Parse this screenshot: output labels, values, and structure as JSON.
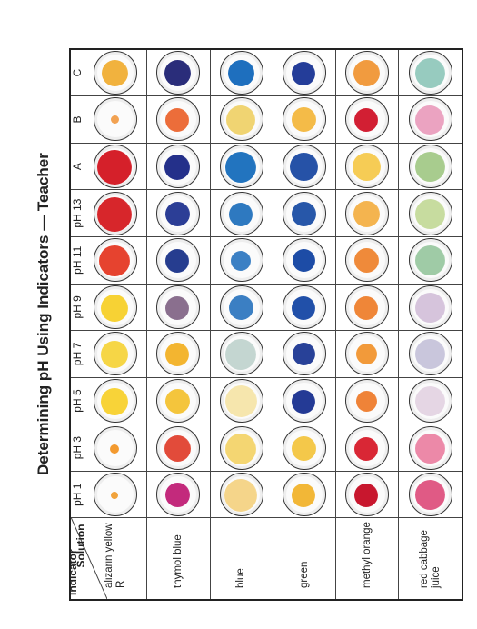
{
  "title": "Determining pH Using Indicators — Teacher",
  "header": {
    "solution_label": "Solution",
    "indicator_label": "Indicator",
    "columns": [
      "pH 1",
      "pH 3",
      "pH 5",
      "pH 7",
      "pH 9",
      "pH 11",
      "pH 13",
      "A",
      "B",
      "C"
    ]
  },
  "rows": [
    {
      "indicator": "alizarin yellow R",
      "colors": [
        "#f1a33c",
        "#f39a2f",
        "#f8d338",
        "#f6d646",
        "#f7d234",
        "#e6432f",
        "#d7262b",
        "#d5202a",
        "#f2a252",
        "#f1b23e"
      ]
    },
    {
      "indicator": "thymol blue",
      "colors": [
        "#c32a7c",
        "#e24b3a",
        "#f4c53c",
        "#f3b530",
        "#8a6f8e",
        "#263d8f",
        "#2c3e96",
        "#24308a",
        "#ec6d3a",
        "#2a2d7a"
      ]
    },
    {
      "indicator": "blue",
      "colors": [
        "#f5d58a",
        "#f4d672",
        "#f6e6ad",
        "#c4d6d1",
        "#3b7fc3",
        "#3b80c4",
        "#2e79c0",
        "#2274bf",
        "#f0d472",
        "#1e6fbe"
      ]
    },
    {
      "indicator": "green",
      "colors": [
        "#f2b737",
        "#f4c84a",
        "#243a95",
        "#284198",
        "#2150a9",
        "#1d4ca6",
        "#2757a9",
        "#2652a7",
        "#f4bb48",
        "#243d99"
      ]
    },
    {
      "indicator": "methyl orange",
      "colors": [
        "#c8172e",
        "#d92735",
        "#ef8338",
        "#f29a3a",
        "#ef8638",
        "#ef8a3a",
        "#f4b44f",
        "#f6cc55",
        "#d21f33",
        "#f19b3f"
      ]
    },
    {
      "indicator": "red cabbage juice",
      "colors": [
        "#e05a85",
        "#ec89a8",
        "#e5d6e4",
        "#c9c6dc",
        "#d6c4dc",
        "#9fcba6",
        "#c7dc9f",
        "#a8cc8e",
        "#eba3c1",
        "#97cbbf"
      ]
    }
  ],
  "drop_sizes": [
    [
      0.18,
      0.22,
      0.68,
      0.68,
      0.68,
      0.78,
      0.86,
      0.86,
      0.2,
      0.66
    ],
    [
      0.62,
      0.66,
      0.62,
      0.58,
      0.6,
      0.6,
      0.62,
      0.64,
      0.6,
      0.66
    ],
    [
      0.82,
      0.78,
      0.8,
      0.78,
      0.62,
      0.5,
      0.6,
      0.78,
      0.72,
      0.66
    ],
    [
      0.6,
      0.62,
      0.58,
      0.56,
      0.58,
      0.56,
      0.62,
      0.7,
      0.62,
      0.6
    ],
    [
      0.6,
      0.6,
      0.52,
      0.52,
      0.58,
      0.62,
      0.66,
      0.7,
      0.6,
      0.66
    ],
    [
      0.76,
      0.76,
      0.76,
      0.76,
      0.76,
      0.76,
      0.76,
      0.76,
      0.72,
      0.76
    ]
  ]
}
